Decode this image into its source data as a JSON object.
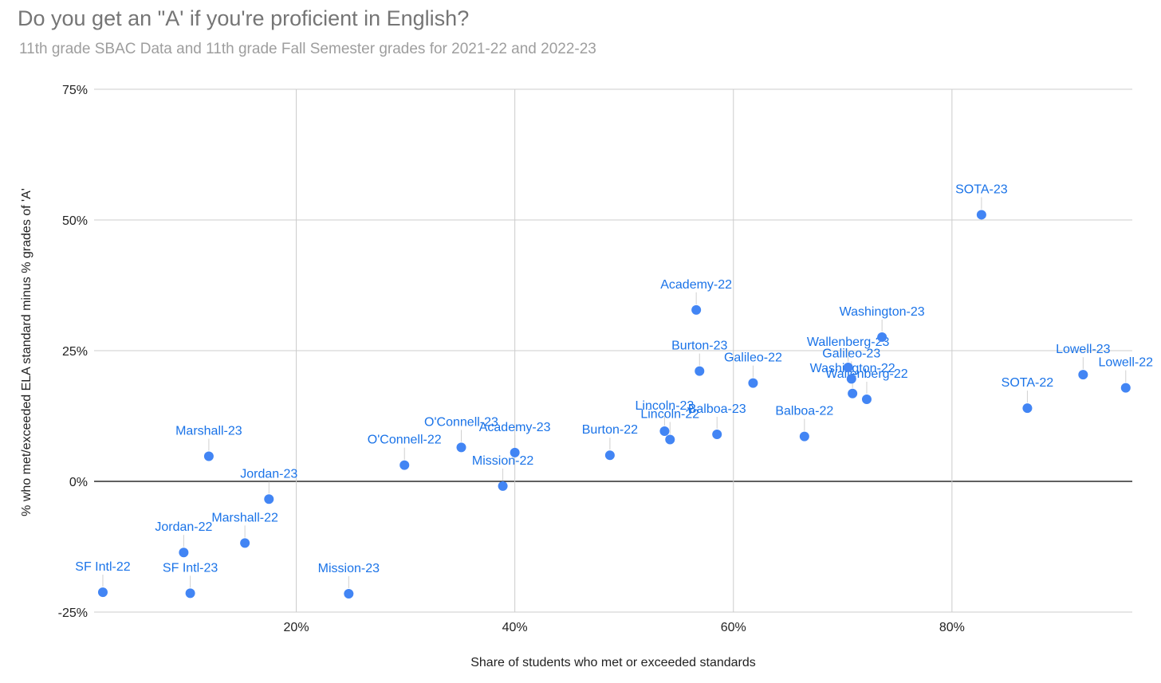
{
  "title": "Do you get an \"A' if you're proficient in English?",
  "subtitle": "11th grade SBAC Data and 11th grade Fall Semester grades for 2021-22 and 2022-23",
  "colors": {
    "point": "#4285f4",
    "label": "#1a73e8",
    "grid": "#cccccc",
    "zero_line": "#000000",
    "title": "#757575",
    "subtitle": "#9e9e9e"
  },
  "chart_data": {
    "type": "scatter",
    "title": "Do you get an \"A' if you're proficient in English?",
    "subtitle": "11th grade SBAC Data and 11th grade Fall Semester grades for 2021-22 and 2022-23",
    "xlabel": "Share of students who met or exceeded standards",
    "ylabel": "% who met/exceeded ELA standard minus % grades of 'A'",
    "xlim": [
      1.5,
      96.5
    ],
    "ylim": [
      -25,
      75
    ],
    "x_ticks": [
      20,
      40,
      60,
      80
    ],
    "x_tick_labels": [
      "20%",
      "40%",
      "60%",
      "80%"
    ],
    "y_ticks": [
      -25,
      0,
      25,
      50,
      75
    ],
    "y_tick_labels": [
      "-25%",
      "0%",
      "25%",
      "50%",
      "75%"
    ],
    "grid": true,
    "legend": "none",
    "points": [
      {
        "label": "SF Intl-22",
        "x": 2.3,
        "y": -21.2
      },
      {
        "label": "SF Intl-23",
        "x": 10.3,
        "y": -21.4
      },
      {
        "label": "Jordan-22",
        "x": 9.7,
        "y": -13.6
      },
      {
        "label": "Marshall-22",
        "x": 15.3,
        "y": -11.8
      },
      {
        "label": "Marshall-23",
        "x": 12.0,
        "y": 4.8
      },
      {
        "label": "Jordan-23",
        "x": 17.5,
        "y": -3.4
      },
      {
        "label": "Mission-23",
        "x": 24.8,
        "y": -21.5
      },
      {
        "label": "O'Connell-22",
        "x": 29.9,
        "y": 3.1
      },
      {
        "label": "O'Connell-23",
        "x": 35.1,
        "y": 6.5
      },
      {
        "label": "Academy-23",
        "x": 40.0,
        "y": 5.5
      },
      {
        "label": "Mission-22",
        "x": 38.9,
        "y": -0.9
      },
      {
        "label": "Burton-22",
        "x": 48.7,
        "y": 5.0
      },
      {
        "label": "Lincoln-23",
        "x": 53.7,
        "y": 9.6
      },
      {
        "label": "Lincoln-22",
        "x": 54.2,
        "y": 8.0
      },
      {
        "label": "Balboa-23",
        "x": 58.5,
        "y": 9.0
      },
      {
        "label": "Academy-22",
        "x": 56.6,
        "y": 32.8
      },
      {
        "label": "Burton-23",
        "x": 56.9,
        "y": 21.1
      },
      {
        "label": "Galileo-22",
        "x": 61.8,
        "y": 18.8
      },
      {
        "label": "Balboa-22",
        "x": 66.5,
        "y": 8.6
      },
      {
        "label": "Galileo-23",
        "x": 70.8,
        "y": 19.6
      },
      {
        "label": "Washington-22",
        "x": 70.9,
        "y": 16.8
      },
      {
        "label": "Wallenberg-23",
        "x": 70.5,
        "y": 21.8
      },
      {
        "label": "Wallenberg-22",
        "x": 72.2,
        "y": 15.7
      },
      {
        "label": "Washington-23",
        "x": 73.6,
        "y": 27.6
      },
      {
        "label": "SOTA-23",
        "x": 82.7,
        "y": 51.0
      },
      {
        "label": "SOTA-22",
        "x": 86.9,
        "y": 14.0
      },
      {
        "label": "Lowell-23",
        "x": 92.0,
        "y": 20.4
      },
      {
        "label": "Lowell-22",
        "x": 95.9,
        "y": 17.9
      }
    ]
  }
}
